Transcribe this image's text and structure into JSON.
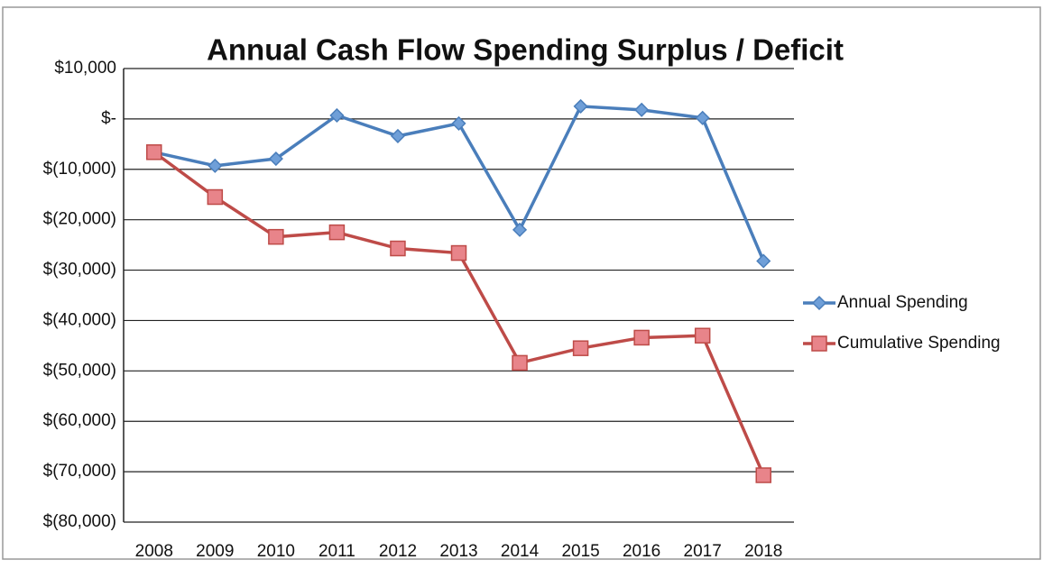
{
  "chart_data": {
    "type": "line",
    "title": "Annual Cash Flow Spending Surplus / Deficit",
    "categories": [
      "2008",
      "2009",
      "2010",
      "2011",
      "2012",
      "2013",
      "2014",
      "2015",
      "2016",
      "2017",
      "2018"
    ],
    "series": [
      {
        "name": "Annual Spending",
        "color": "#4a7ebb",
        "marker": "diamond",
        "values": [
          -6600,
          -9300,
          -7900,
          700,
          -3400,
          -900,
          -22000,
          2500,
          1800,
          200,
          -28200
        ]
      },
      {
        "name": "Cumulative Spending",
        "color": "#be4b48",
        "marker": "square",
        "values": [
          -6600,
          -15500,
          -23400,
          -22500,
          -25700,
          -26600,
          -48400,
          -45500,
          -43400,
          -43000,
          -70700
        ]
      }
    ],
    "ylim": [
      -80000,
      10000
    ],
    "yticks": [
      {
        "value": 10000,
        "label": "$10,000"
      },
      {
        "value": 0,
        "label": "$-"
      },
      {
        "value": -10000,
        "label": "$(10,000)"
      },
      {
        "value": -20000,
        "label": "$(20,000)"
      },
      {
        "value": -30000,
        "label": "$(30,000)"
      },
      {
        "value": -40000,
        "label": "$(40,000)"
      },
      {
        "value": -50000,
        "label": "$(50,000)"
      },
      {
        "value": -60000,
        "label": "$(60,000)"
      },
      {
        "value": -70000,
        "label": "$(70,000)"
      },
      {
        "value": -80000,
        "label": "$(80,000)"
      }
    ],
    "grid": true,
    "legend": "right"
  }
}
